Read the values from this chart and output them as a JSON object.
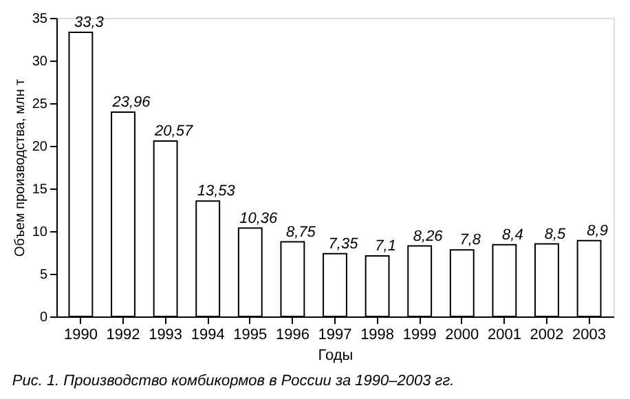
{
  "chart_data": {
    "type": "bar",
    "categories": [
      "1990",
      "1992",
      "1993",
      "1994",
      "1995",
      "1996",
      "1997",
      "1998",
      "1999",
      "2000",
      "2001",
      "2002",
      "2003"
    ],
    "values": [
      33.3,
      23.96,
      20.57,
      13.53,
      10.36,
      8.75,
      7.35,
      7.1,
      8.26,
      7.8,
      8.4,
      8.5,
      8.9
    ],
    "value_labels": [
      "33,3",
      "23,96",
      "20,57",
      "13,53",
      "10,36",
      "8,75",
      "7,35",
      "7,1",
      "8,26",
      "7,8",
      "8,4",
      "8,5",
      "8,9"
    ],
    "color": "#ffffff",
    "xlabel": "Годы",
    "ylabel": "Объем производства, млн т",
    "ylim": [
      0,
      35
    ],
    "yticks": [
      0,
      5,
      10,
      15,
      20,
      25,
      30,
      35
    ],
    "grid": false,
    "annotations": [
      "Рис. 1. Производство комбикормов в России за 1990–2003 гг."
    ]
  }
}
